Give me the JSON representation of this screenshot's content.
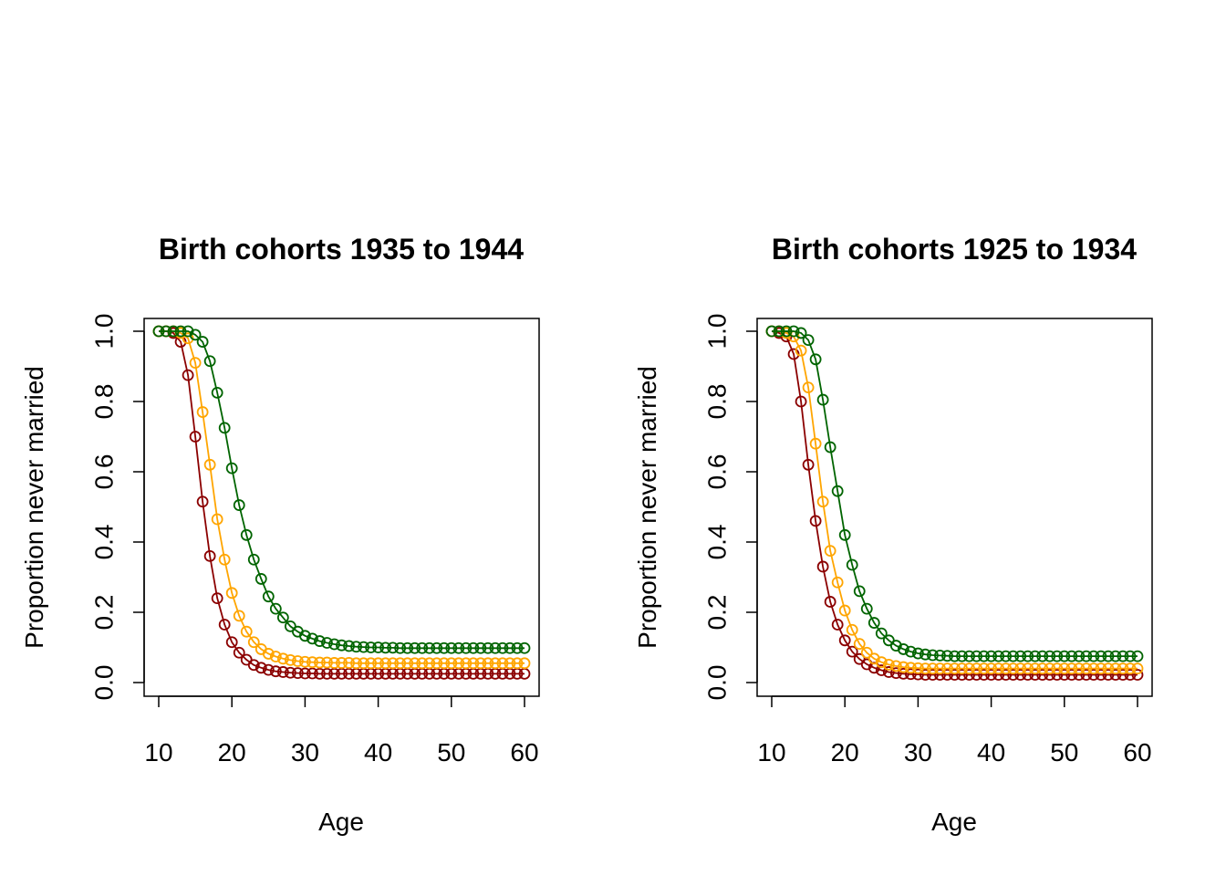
{
  "colors": {
    "series_1": "#8B0000",
    "series_2": "#FFA500",
    "series_3": "#006400"
  },
  "chart_data": [
    {
      "type": "line",
      "marker": "open-circle",
      "title": "Birth cohorts  1935 to 1944",
      "xlabel": "Age",
      "ylabel": "Proportion never married",
      "xlim": [
        10,
        60
      ],
      "ylim": [
        0.0,
        1.0
      ],
      "xticks": [
        "10",
        "20",
        "30",
        "40",
        "50",
        "60"
      ],
      "yticks": [
        "0.0",
        "0.2",
        "0.4",
        "0.6",
        "0.8",
        "1.0"
      ],
      "grid": false,
      "x": [
        10,
        11,
        12,
        13,
        14,
        15,
        16,
        17,
        18,
        19,
        20,
        21,
        22,
        23,
        24,
        25,
        26,
        27,
        28,
        29,
        30,
        31,
        32,
        33,
        34,
        35,
        36,
        37,
        38,
        39,
        40,
        41,
        42,
        43,
        44,
        45,
        46,
        47,
        48,
        49,
        50,
        51,
        52,
        53,
        54,
        55,
        56,
        57,
        58,
        59,
        60
      ],
      "series": [
        {
          "values": [
            1.0,
            1.0,
            0.995,
            0.97,
            0.875,
            0.7,
            0.515,
            0.36,
            0.24,
            0.165,
            0.115,
            0.085,
            0.065,
            0.05,
            0.042,
            0.036,
            0.032,
            0.03,
            0.028,
            0.027,
            0.026,
            0.026,
            0.025,
            0.025,
            0.025,
            0.025,
            0.025,
            0.025,
            0.025,
            0.025,
            0.025,
            0.025,
            0.025,
            0.025,
            0.025,
            0.025,
            0.025,
            0.025,
            0.025,
            0.025,
            0.025,
            0.025,
            0.025,
            0.025,
            0.025,
            0.025,
            0.025,
            0.025,
            0.025,
            0.025,
            0.025
          ]
        },
        {
          "values": [
            1.0,
            1.0,
            1.0,
            0.995,
            0.98,
            0.91,
            0.77,
            0.62,
            0.465,
            0.35,
            0.255,
            0.19,
            0.145,
            0.115,
            0.095,
            0.082,
            0.074,
            0.068,
            0.064,
            0.061,
            0.059,
            0.058,
            0.057,
            0.057,
            0.056,
            0.056,
            0.056,
            0.055,
            0.055,
            0.055,
            0.055,
            0.055,
            0.055,
            0.055,
            0.055,
            0.055,
            0.055,
            0.055,
            0.055,
            0.055,
            0.055,
            0.055,
            0.055,
            0.055,
            0.055,
            0.055,
            0.055,
            0.055,
            0.055,
            0.055,
            0.055
          ]
        },
        {
          "values": [
            1.0,
            1.0,
            1.0,
            1.0,
            1.0,
            0.99,
            0.97,
            0.915,
            0.825,
            0.725,
            0.61,
            0.505,
            0.42,
            0.35,
            0.295,
            0.245,
            0.21,
            0.185,
            0.16,
            0.145,
            0.133,
            0.125,
            0.118,
            0.113,
            0.109,
            0.106,
            0.104,
            0.102,
            0.101,
            0.1,
            0.1,
            0.099,
            0.099,
            0.098,
            0.098,
            0.098,
            0.098,
            0.098,
            0.098,
            0.098,
            0.098,
            0.098,
            0.098,
            0.098,
            0.098,
            0.098,
            0.098,
            0.098,
            0.098,
            0.098,
            0.098
          ]
        }
      ]
    },
    {
      "type": "line",
      "marker": "open-circle",
      "title": "Birth cohorts  1925 to 1934",
      "xlabel": "Age",
      "ylabel": "Proportion never married",
      "xlim": [
        10,
        60
      ],
      "ylim": [
        0.0,
        1.0
      ],
      "xticks": [
        "10",
        "20",
        "30",
        "40",
        "50",
        "60"
      ],
      "yticks": [
        "0.0",
        "0.2",
        "0.4",
        "0.6",
        "0.8",
        "1.0"
      ],
      "grid": false,
      "x": [
        10,
        11,
        12,
        13,
        14,
        15,
        16,
        17,
        18,
        19,
        20,
        21,
        22,
        23,
        24,
        25,
        26,
        27,
        28,
        29,
        30,
        31,
        32,
        33,
        34,
        35,
        36,
        37,
        38,
        39,
        40,
        41,
        42,
        43,
        44,
        45,
        46,
        47,
        48,
        49,
        50,
        51,
        52,
        53,
        54,
        55,
        56,
        57,
        58,
        59,
        60
      ],
      "series": [
        {
          "values": [
            1.0,
            0.995,
            0.985,
            0.935,
            0.8,
            0.62,
            0.46,
            0.33,
            0.23,
            0.165,
            0.12,
            0.088,
            0.067,
            0.052,
            0.042,
            0.035,
            0.03,
            0.027,
            0.025,
            0.024,
            0.023,
            0.022,
            0.022,
            0.022,
            0.022,
            0.022,
            0.022,
            0.022,
            0.022,
            0.022,
            0.022,
            0.022,
            0.022,
            0.022,
            0.022,
            0.022,
            0.022,
            0.022,
            0.022,
            0.022,
            0.022,
            0.022,
            0.022,
            0.022,
            0.022,
            0.022,
            0.022,
            0.022,
            0.022,
            0.022,
            0.022
          ]
        },
        {
          "values": [
            1.0,
            1.0,
            0.995,
            0.985,
            0.945,
            0.84,
            0.68,
            0.515,
            0.375,
            0.285,
            0.205,
            0.15,
            0.11,
            0.085,
            0.068,
            0.058,
            0.051,
            0.047,
            0.044,
            0.042,
            0.041,
            0.04,
            0.04,
            0.04,
            0.04,
            0.04,
            0.04,
            0.04,
            0.04,
            0.04,
            0.04,
            0.04,
            0.04,
            0.04,
            0.04,
            0.04,
            0.04,
            0.04,
            0.04,
            0.04,
            0.04,
            0.04,
            0.04,
            0.04,
            0.04,
            0.04,
            0.04,
            0.04,
            0.04,
            0.04,
            0.04
          ]
        },
        {
          "values": [
            1.0,
            1.0,
            1.0,
            1.0,
            0.995,
            0.975,
            0.92,
            0.805,
            0.67,
            0.545,
            0.42,
            0.335,
            0.26,
            0.21,
            0.17,
            0.14,
            0.12,
            0.105,
            0.095,
            0.088,
            0.083,
            0.08,
            0.078,
            0.077,
            0.076,
            0.075,
            0.075,
            0.075,
            0.075,
            0.075,
            0.075,
            0.075,
            0.075,
            0.075,
            0.075,
            0.075,
            0.075,
            0.075,
            0.075,
            0.075,
            0.075,
            0.075,
            0.075,
            0.075,
            0.075,
            0.075,
            0.075,
            0.075,
            0.075,
            0.075,
            0.075
          ]
        }
      ]
    }
  ]
}
